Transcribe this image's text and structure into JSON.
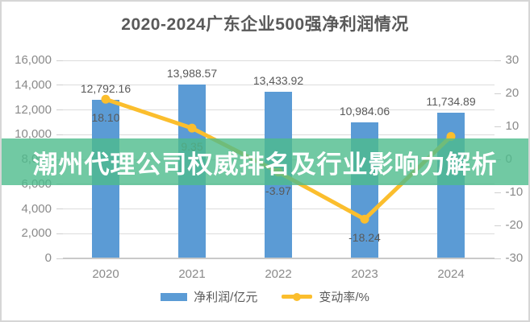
{
  "overlay": {
    "text": "潮州代理公司权威排名及行业影响力解析",
    "bg_color": "#4dbc8c",
    "bg_opacity": 0.8,
    "text_color": "#ffffff"
  },
  "chart_data": {
    "type": "bar",
    "title": "2020-2024广东企业500强净利润情况",
    "categories": [
      "2020",
      "2021",
      "2022",
      "2023",
      "2024"
    ],
    "series": [
      {
        "name": "净利润/亿元",
        "type": "bar",
        "axis": "left",
        "color": "#5b9bd5",
        "values": [
          12792.16,
          13988.57,
          13433.92,
          10984.06,
          11734.89
        ],
        "labels": [
          "12,792.16",
          "13,988.57",
          "13,433.92",
          "10,984.06",
          "11,734.89"
        ]
      },
      {
        "name": "变动率/%",
        "type": "line",
        "axis": "right",
        "color": "#fbbe2d",
        "values": [
          18.1,
          9.35,
          -3.97,
          -18.24,
          6.84
        ],
        "labels": [
          "18.10",
          "9.35",
          "-3.97",
          "-18.24",
          ""
        ]
      }
    ],
    "left_axis": {
      "min": 0,
      "max": 16000,
      "step": 2000,
      "tick_labels": [
        "16,000",
        "14,000",
        "12,000",
        "10,000",
        "8,000",
        "6,000",
        "4,000",
        "2,000",
        "0"
      ]
    },
    "right_axis": {
      "min": -30,
      "max": 30,
      "step": 10,
      "tick_labels": [
        "30",
        "20",
        "10",
        "0",
        "-10",
        "-20",
        "-30"
      ]
    },
    "grid": true,
    "legend_position": "bottom",
    "styles": {
      "grid_color": "#dcdcdc",
      "axis_text_color": "#8a8a8a",
      "data_label_color": "#595959",
      "title_color": "#595959"
    }
  }
}
